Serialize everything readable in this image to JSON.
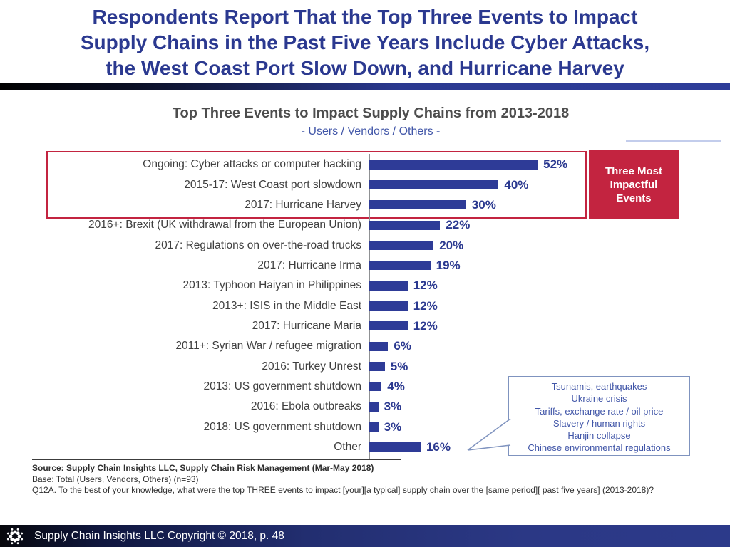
{
  "slide": {
    "title_lines": [
      "Respondents Report That the Top Three Events to Impact",
      "Supply Chains in the Past Five Years Include Cyber Attacks,",
      "the West Coast Port Slow Down, and Hurricane Harvey"
    ]
  },
  "chart_data": {
    "type": "bar",
    "orientation": "horizontal",
    "title": "Top Three Events to Impact Supply Chains from 2013-2018",
    "subtitle": "- Users / Vendors / Others -",
    "categories": [
      "Ongoing: Cyber attacks or computer hacking",
      "2015-17: West Coast port slowdown",
      "2017: Hurricane Harvey",
      "2016+: Brexit (UK withdrawal from the European Union)",
      "2017: Regulations on over-the-road trucks",
      "2017: Hurricane Irma",
      "2013: Typhoon Haiyan in Philippines",
      "2013+: ISIS in the Middle East",
      "2017: Hurricane Maria",
      "2011+: Syrian War / refugee migration",
      "2016: Turkey Unrest",
      "2013: US government shutdown",
      "2016: Ebola outbreaks",
      "2018: US government shutdown",
      "Other"
    ],
    "values": [
      52,
      40,
      30,
      22,
      20,
      19,
      12,
      12,
      12,
      6,
      5,
      4,
      3,
      3,
      16
    ],
    "value_suffix": "%",
    "xlim": [
      0,
      60
    ],
    "grid": false,
    "legend": "none",
    "bar_color": "#2e3b97",
    "highlight": {
      "label": "Three Most Impactful Events",
      "box_color": "#c32440",
      "rows": [
        0,
        1,
        2
      ]
    },
    "other_callout": [
      "Tsunamis, earthquakes",
      "Ukraine crisis",
      "Tariffs, exchange rate / oil price",
      "Slavery / human rights",
      "Hanjin collapse",
      "Chinese environmental regulations"
    ]
  },
  "source": {
    "source_line": "Source:  Supply Chain Insights LLC, Supply Chain Risk Management (Mar-May 2018)",
    "base_line": "Base: Total (Users, Vendors, Others) (n=93)",
    "question_line": "Q12A. To the best of your knowledge, what were the top THREE events to impact [your][a typical] supply chain over the [same period][ past five years] (2013-2018)?"
  },
  "footer": {
    "text": "Supply Chain Insights LLC Copyright © 2018, p. 48",
    "logo": "supply-chain-insights-dots-logo"
  },
  "colors": {
    "title_blue": "#2b3990",
    "bar_blue": "#2e3b97",
    "accent_red": "#c32440",
    "callout_blue": "#4156a8",
    "chart_title_gray": "#4d4d4d"
  }
}
